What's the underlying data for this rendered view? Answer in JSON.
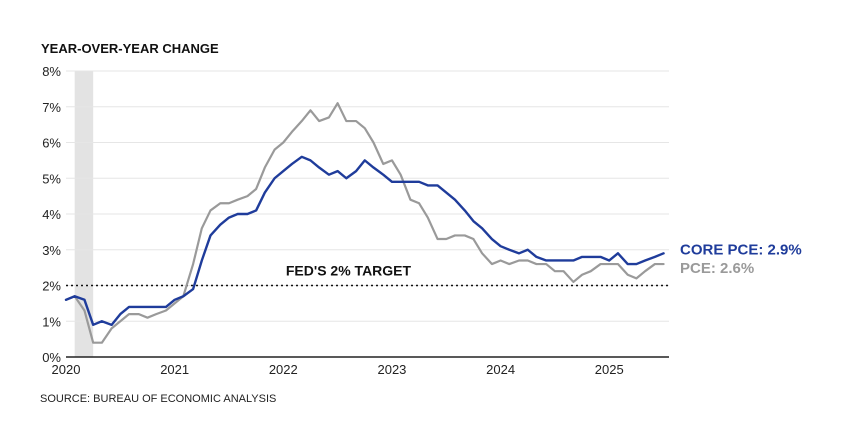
{
  "chart_data": {
    "type": "line",
    "ylabel": "YEAR-OVER-YEAR CHANGE",
    "ylim": [
      0,
      8
    ],
    "yticks": [
      "0%",
      "1%",
      "2%",
      "3%",
      "4%",
      "5%",
      "6%",
      "7%",
      "8%"
    ],
    "xlim": [
      2020.0,
      2025.55
    ],
    "xticks": [
      "2020",
      "2021",
      "2022",
      "2023",
      "2024",
      "2025"
    ],
    "grid": true,
    "recession_band": [
      2020.08,
      2020.25
    ],
    "target": {
      "label": "FED'S 2% TARGET",
      "value": 2
    },
    "source": "SOURCE: BUREAU OF ECONOMIC ANALYSIS",
    "series": [
      {
        "name": "PCE",
        "end_label": "PCE: 2.6%",
        "color": "#9a9a9a",
        "x": [
          2020.0,
          2020.08,
          2020.17,
          2020.25,
          2020.33,
          2020.42,
          2020.5,
          2020.58,
          2020.67,
          2020.75,
          2020.83,
          2020.92,
          2021.0,
          2021.08,
          2021.17,
          2021.25,
          2021.33,
          2021.42,
          2021.5,
          2021.58,
          2021.67,
          2021.75,
          2021.83,
          2021.92,
          2022.0,
          2022.08,
          2022.17,
          2022.25,
          2022.33,
          2022.42,
          2022.5,
          2022.58,
          2022.67,
          2022.75,
          2022.83,
          2022.92,
          2023.0,
          2023.08,
          2023.17,
          2023.25,
          2023.33,
          2023.42,
          2023.5,
          2023.58,
          2023.67,
          2023.75,
          2023.83,
          2023.92,
          2024.0,
          2024.08,
          2024.17,
          2024.25,
          2024.33,
          2024.42,
          2024.5,
          2024.58,
          2024.67,
          2024.75,
          2024.83,
          2024.92,
          2025.0,
          2025.08,
          2025.17,
          2025.25,
          2025.33,
          2025.42,
          2025.5
        ],
        "values": [
          1.6,
          1.7,
          1.3,
          0.4,
          0.4,
          0.8,
          1.0,
          1.2,
          1.2,
          1.1,
          1.2,
          1.3,
          1.5,
          1.7,
          2.6,
          3.6,
          4.1,
          4.3,
          4.3,
          4.4,
          4.5,
          4.7,
          5.3,
          5.8,
          6.0,
          6.3,
          6.6,
          6.9,
          6.6,
          6.7,
          7.1,
          6.6,
          6.6,
          6.4,
          6.0,
          5.4,
          5.5,
          5.1,
          4.4,
          4.3,
          3.9,
          3.3,
          3.3,
          3.4,
          3.4,
          3.3,
          2.9,
          2.6,
          2.7,
          2.6,
          2.7,
          2.7,
          2.6,
          2.6,
          2.4,
          2.4,
          2.1,
          2.3,
          2.4,
          2.6,
          2.6,
          2.6,
          2.3,
          2.2,
          2.4,
          2.6,
          2.6
        ]
      },
      {
        "name": "CORE PCE",
        "end_label": "CORE PCE: 2.9%",
        "color": "#1f3c9b",
        "x": [
          2020.0,
          2020.08,
          2020.17,
          2020.25,
          2020.33,
          2020.42,
          2020.5,
          2020.58,
          2020.67,
          2020.75,
          2020.83,
          2020.92,
          2021.0,
          2021.08,
          2021.17,
          2021.25,
          2021.33,
          2021.42,
          2021.5,
          2021.58,
          2021.67,
          2021.75,
          2021.83,
          2021.92,
          2022.0,
          2022.08,
          2022.17,
          2022.25,
          2022.33,
          2022.42,
          2022.5,
          2022.58,
          2022.67,
          2022.75,
          2022.83,
          2022.92,
          2023.0,
          2023.08,
          2023.17,
          2023.25,
          2023.33,
          2023.42,
          2023.5,
          2023.58,
          2023.67,
          2023.75,
          2023.83,
          2023.92,
          2024.0,
          2024.08,
          2024.17,
          2024.25,
          2024.33,
          2024.42,
          2024.5,
          2024.58,
          2024.67,
          2024.75,
          2024.83,
          2024.92,
          2025.0,
          2025.08,
          2025.17,
          2025.25,
          2025.33,
          2025.42,
          2025.5
        ],
        "values": [
          1.6,
          1.7,
          1.6,
          0.9,
          1.0,
          0.9,
          1.2,
          1.4,
          1.4,
          1.4,
          1.4,
          1.4,
          1.6,
          1.7,
          1.9,
          2.7,
          3.4,
          3.7,
          3.9,
          4.0,
          4.0,
          4.1,
          4.6,
          5.0,
          5.2,
          5.4,
          5.6,
          5.5,
          5.3,
          5.1,
          5.2,
          5.0,
          5.2,
          5.5,
          5.3,
          5.1,
          4.9,
          4.9,
          4.9,
          4.9,
          4.8,
          4.8,
          4.6,
          4.4,
          4.1,
          3.8,
          3.6,
          3.3,
          3.1,
          3.0,
          2.9,
          3.0,
          2.8,
          2.7,
          2.7,
          2.7,
          2.7,
          2.8,
          2.8,
          2.8,
          2.7,
          2.9,
          2.6,
          2.6,
          2.7,
          2.8,
          2.9
        ]
      }
    ]
  }
}
